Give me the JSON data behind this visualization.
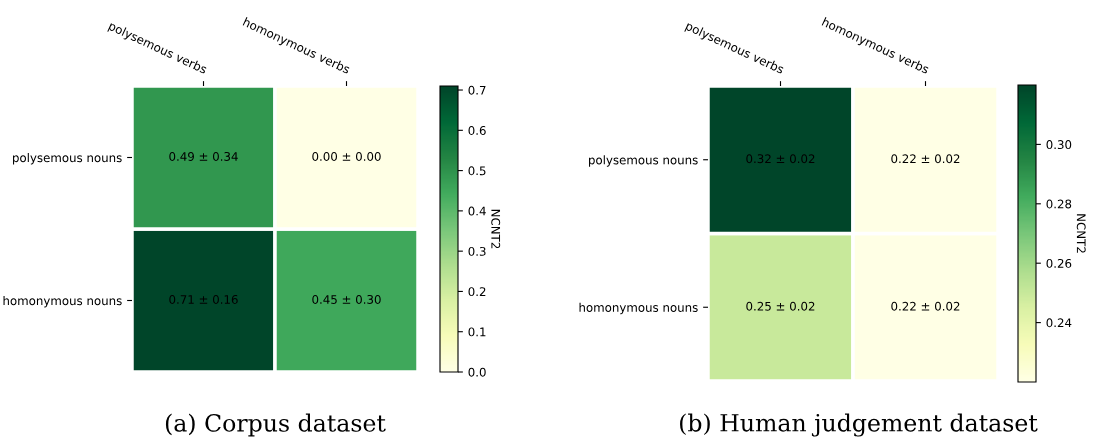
{
  "chart_data": [
    {
      "type": "heatmap",
      "categories": [
        "polysemous verbs",
        "homonymous verbs"
      ],
      "y_categories": [
        "polysemous nouns",
        "homonymous nouns"
      ],
      "cells": [
        [
          0.49,
          0.0
        ],
        [
          0.71,
          0.45
        ]
      ],
      "cell_labels": [
        [
          "0.49 ± 0.34",
          "0.00 ± 0.00"
        ],
        [
          "0.71 ± 0.16",
          "0.45 ± 0.30"
        ]
      ],
      "clim": [
        0,
        0.71
      ],
      "clabel": "NCNT2",
      "cticks": [
        {
          "value": 0,
          "label": "0.0"
        },
        {
          "value": 0.1,
          "label": "0.1"
        },
        {
          "value": 0.2,
          "label": "0.2"
        },
        {
          "value": 0.3,
          "label": "0.3"
        },
        {
          "value": 0.4,
          "label": "0.4"
        },
        {
          "value": 0.5,
          "label": "0.5"
        },
        {
          "value": 0.6,
          "label": "0.6"
        },
        {
          "value": 0.7,
          "label": "0.7"
        }
      ],
      "annotations": [
        "(a) Corpus dataset"
      ]
    },
    {
      "type": "heatmap",
      "categories": [
        "polysemous verbs",
        "homonymous verbs"
      ],
      "y_categories": [
        "polysemous nouns",
        "homonymous nouns"
      ],
      "cells": [
        [
          0.32,
          0.22
        ],
        [
          0.25,
          0.22
        ]
      ],
      "cell_labels": [
        [
          "0.32 ± 0.02",
          "0.22 ± 0.02"
        ],
        [
          "0.25 ± 0.02",
          "0.22 ± 0.02"
        ]
      ],
      "clim": [
        0.22,
        0.32
      ],
      "clabel": "NCNT2",
      "cticks": [
        {
          "value": 0.24,
          "label": "0.24"
        },
        {
          "value": 0.26,
          "label": "0.26"
        },
        {
          "value": 0.28,
          "label": "0.28"
        },
        {
          "value": 0.3,
          "label": "0.30"
        }
      ],
      "annotations": [
        "(b) Human judgement dataset"
      ]
    }
  ]
}
